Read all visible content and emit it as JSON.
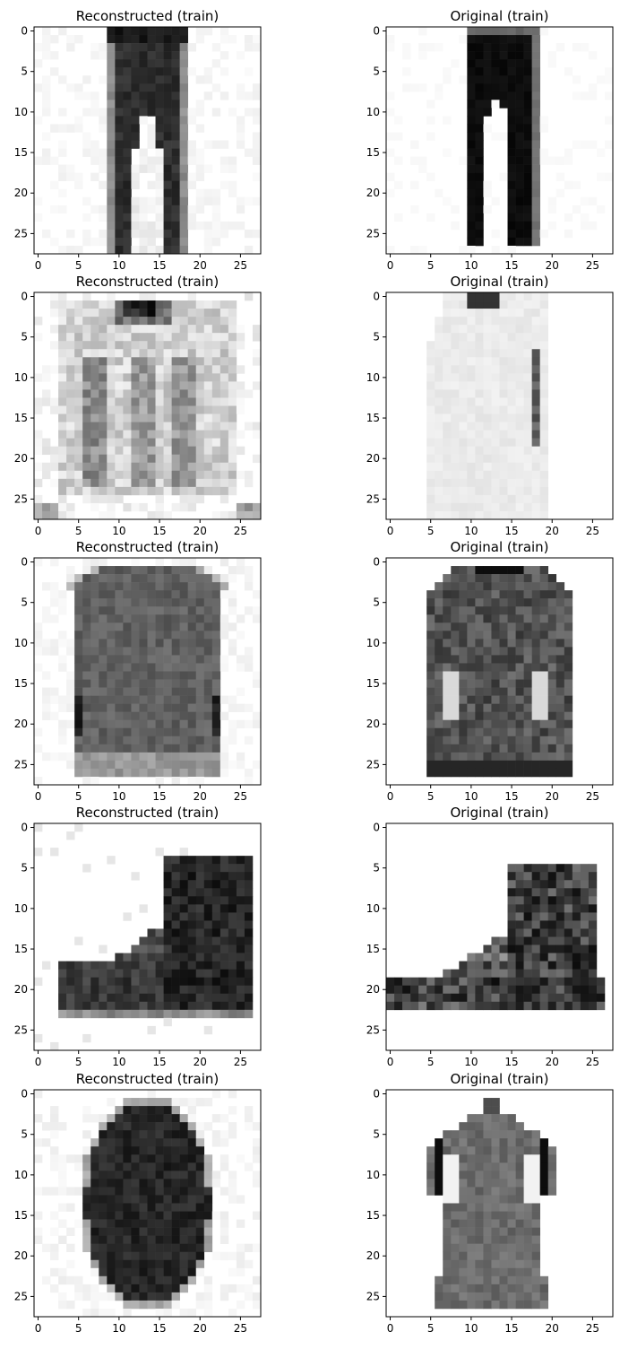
{
  "chart_data": [
    {
      "type": "heatmap",
      "title": "Reconstructed (train)",
      "row": 0,
      "col": 0,
      "shape": "pants-recon",
      "xlim": [
        -0.5,
        27.5
      ],
      "ylim": [
        27.5,
        -0.5
      ],
      "xticks": [
        0,
        5,
        10,
        15,
        20,
        25
      ],
      "yticks": [
        0,
        5,
        10,
        15,
        20,
        25
      ],
      "colormap": "gray_r"
    },
    {
      "type": "heatmap",
      "title": "Original (train)",
      "row": 0,
      "col": 1,
      "shape": "pants-orig",
      "xlim": [
        -0.5,
        27.5
      ],
      "ylim": [
        27.5,
        -0.5
      ],
      "xticks": [
        0,
        5,
        10,
        15,
        20,
        25
      ],
      "yticks": [
        0,
        5,
        10,
        15,
        20,
        25
      ],
      "colormap": "gray_r"
    },
    {
      "type": "heatmap",
      "title": "Reconstructed (train)",
      "row": 1,
      "col": 0,
      "shape": "shirt-recon",
      "xlim": [
        -0.5,
        27.5
      ],
      "ylim": [
        27.5,
        -0.5
      ],
      "xticks": [
        0,
        5,
        10,
        15,
        20,
        25
      ],
      "yticks": [
        0,
        5,
        10,
        15,
        20,
        25
      ],
      "colormap": "gray_r"
    },
    {
      "type": "heatmap",
      "title": "Original (train)",
      "row": 1,
      "col": 1,
      "shape": "shirt-orig",
      "xlim": [
        -0.5,
        27.5
      ],
      "ylim": [
        27.5,
        -0.5
      ],
      "xticks": [
        0,
        5,
        10,
        15,
        20,
        25
      ],
      "yticks": [
        0,
        5,
        10,
        15,
        20,
        25
      ],
      "colormap": "gray_r"
    },
    {
      "type": "heatmap",
      "title": "Reconstructed (train)",
      "row": 2,
      "col": 0,
      "shape": "pullover-recon",
      "xlim": [
        -0.5,
        27.5
      ],
      "ylim": [
        27.5,
        -0.5
      ],
      "xticks": [
        0,
        5,
        10,
        15,
        20,
        25
      ],
      "yticks": [
        0,
        5,
        10,
        15,
        20,
        25
      ],
      "colormap": "gray_r"
    },
    {
      "type": "heatmap",
      "title": "Original (train)",
      "row": 2,
      "col": 1,
      "shape": "coat-orig",
      "xlim": [
        -0.5,
        27.5
      ],
      "ylim": [
        27.5,
        -0.5
      ],
      "xticks": [
        0,
        5,
        10,
        15,
        20,
        25
      ],
      "yticks": [
        0,
        5,
        10,
        15,
        20,
        25
      ],
      "colormap": "gray_r"
    },
    {
      "type": "heatmap",
      "title": "Reconstructed (train)",
      "row": 3,
      "col": 0,
      "shape": "boot-recon",
      "xlim": [
        -0.5,
        27.5
      ],
      "ylim": [
        27.5,
        -0.5
      ],
      "xticks": [
        0,
        5,
        10,
        15,
        20,
        25
      ],
      "yticks": [
        0,
        5,
        10,
        15,
        20,
        25
      ],
      "colormap": "gray_r"
    },
    {
      "type": "heatmap",
      "title": "Original (train)",
      "row": 3,
      "col": 1,
      "shape": "boot-orig",
      "xlim": [
        -0.5,
        27.5
      ],
      "ylim": [
        27.5,
        -0.5
      ],
      "xticks": [
        0,
        5,
        10,
        15,
        20,
        25
      ],
      "yticks": [
        0,
        5,
        10,
        15,
        20,
        25
      ],
      "colormap": "gray_r"
    },
    {
      "type": "heatmap",
      "title": "Reconstructed (train)",
      "row": 4,
      "col": 0,
      "shape": "dress-recon",
      "xlim": [
        -0.5,
        27.5
      ],
      "ylim": [
        27.5,
        -0.5
      ],
      "xticks": [
        0,
        5,
        10,
        15,
        20,
        25
      ],
      "yticks": [
        0,
        5,
        10,
        15,
        20,
        25
      ],
      "colormap": "gray_r"
    },
    {
      "type": "heatmap",
      "title": "Original (train)",
      "row": 4,
      "col": 1,
      "shape": "dress-orig",
      "xlim": [
        -0.5,
        27.5
      ],
      "ylim": [
        27.5,
        -0.5
      ],
      "xticks": [
        0,
        5,
        10,
        15,
        20,
        25
      ],
      "yticks": [
        0,
        5,
        10,
        15,
        20,
        25
      ],
      "colormap": "gray_r"
    }
  ]
}
